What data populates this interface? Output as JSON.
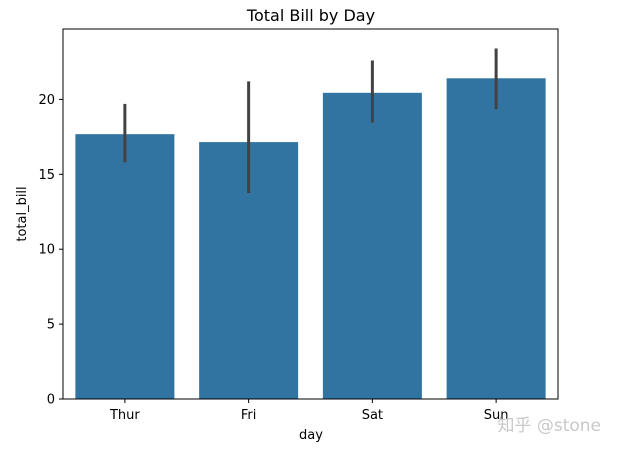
{
  "chart_data": {
    "type": "bar",
    "title": "Total Bill by Day",
    "xlabel": "day",
    "ylabel": "total_bill",
    "categories": [
      "Thur",
      "Fri",
      "Sat",
      "Sun"
    ],
    "values": [
      17.68,
      17.15,
      20.44,
      21.41
    ],
    "error_low": [
      15.8,
      13.75,
      18.45,
      19.35
    ],
    "error_high": [
      19.7,
      21.2,
      22.6,
      23.4
    ],
    "ylim": [
      0,
      24.7
    ],
    "yticks": [
      0,
      5,
      10,
      15,
      20
    ],
    "grid": false,
    "colors": {
      "bar": "#3274a1",
      "errorbar": "#424242"
    }
  },
  "watermark": {
    "text": "知乎 @stone"
  }
}
